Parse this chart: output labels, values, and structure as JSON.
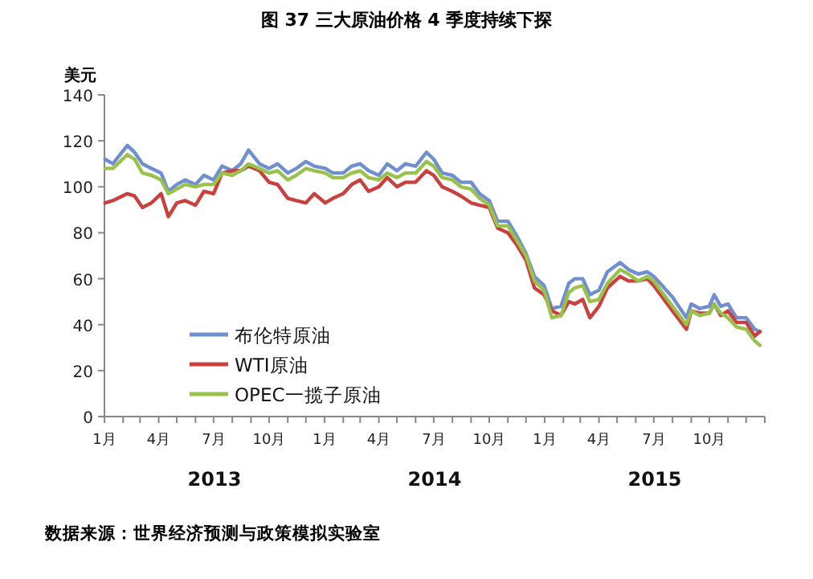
{
  "chart_data": {
    "type": "line",
    "title": "图 37  三大原油价格 4 季度持续下探",
    "ylabel": "美元",
    "annotations": [
      "2013",
      "2014",
      "2015",
      "数据来源：世界经济预测与政策模拟实验室"
    ],
    "xlim": [
      "2013-01-01",
      "2016-01-01"
    ],
    "ylim": [
      0,
      140
    ],
    "yticks": [
      0,
      20,
      40,
      60,
      80,
      100,
      120,
      140
    ],
    "xticks": [
      {
        "value": "2013-01-01",
        "label": "1月"
      },
      {
        "value": "2013-02-01",
        "label": null
      },
      {
        "value": "2013-03-01",
        "label": null
      },
      {
        "value": "2013-04-01",
        "label": "4月"
      },
      {
        "value": "2013-05-01",
        "label": null
      },
      {
        "value": "2013-06-01",
        "label": null
      },
      {
        "value": "2013-07-01",
        "label": "7月"
      },
      {
        "value": "2013-08-01",
        "label": null
      },
      {
        "value": "2013-09-01",
        "label": null
      },
      {
        "value": "2013-10-01",
        "label": "10月"
      },
      {
        "value": "2013-11-01",
        "label": null
      },
      {
        "value": "2013-12-01",
        "label": null
      },
      {
        "value": "2014-01-01",
        "label": "1月"
      },
      {
        "value": "2014-02-01",
        "label": null
      },
      {
        "value": "2014-03-01",
        "label": null
      },
      {
        "value": "2014-04-01",
        "label": "4月"
      },
      {
        "value": "2014-05-01",
        "label": null
      },
      {
        "value": "2014-06-01",
        "label": null
      },
      {
        "value": "2014-07-01",
        "label": "7月"
      },
      {
        "value": "2014-08-01",
        "label": null
      },
      {
        "value": "2014-09-01",
        "label": null
      },
      {
        "value": "2014-10-01",
        "label": "10月"
      },
      {
        "value": "2014-11-01",
        "label": null
      },
      {
        "value": "2014-12-01",
        "label": null
      },
      {
        "value": "2015-01-01",
        "label": "1月"
      },
      {
        "value": "2015-02-01",
        "label": null
      },
      {
        "value": "2015-03-01",
        "label": null
      },
      {
        "value": "2015-04-01",
        "label": "4月"
      },
      {
        "value": "2015-05-01",
        "label": null
      },
      {
        "value": "2015-06-01",
        "label": null
      },
      {
        "value": "2015-07-01",
        "label": "7月"
      },
      {
        "value": "2015-08-01",
        "label": null
      },
      {
        "value": "2015-09-01",
        "label": null
      },
      {
        "value": "2015-10-01",
        "label": "10月"
      },
      {
        "value": "2015-11-01",
        "label": null
      },
      {
        "value": "2015-12-01",
        "label": null
      },
      {
        "value": "2016-01-01",
        "label": null
      }
    ],
    "grid": false,
    "legend": "bottom left",
    "marker": "none",
    "line_style": "solid",
    "x": [
      "2013-01-02",
      "2013-01-15",
      "2013-02-08",
      "2013-02-20",
      "2013-03-05",
      "2013-03-20",
      "2013-04-05",
      "2013-04-17",
      "2013-05-01",
      "2013-05-15",
      "2013-06-01",
      "2013-06-15",
      "2013-07-01",
      "2013-07-15",
      "2013-08-01",
      "2013-08-15",
      "2013-08-28",
      "2013-09-15",
      "2013-10-01",
      "2013-10-15",
      "2013-11-01",
      "2013-11-15",
      "2013-12-01",
      "2013-12-15",
      "2014-01-02",
      "2014-01-15",
      "2014-02-01",
      "2014-02-15",
      "2014-03-01",
      "2014-03-15",
      "2014-04-01",
      "2014-04-15",
      "2014-05-01",
      "2014-05-15",
      "2014-06-01",
      "2014-06-19",
      "2014-07-01",
      "2014-07-15",
      "2014-08-01",
      "2014-08-15",
      "2014-09-01",
      "2014-09-15",
      "2014-10-01",
      "2014-10-15",
      "2014-11-01",
      "2014-11-15",
      "2014-12-01",
      "2014-12-15",
      "2014-12-31",
      "2015-01-13",
      "2015-01-28",
      "2015-02-10",
      "2015-02-20",
      "2015-03-05",
      "2015-03-17",
      "2015-04-01",
      "2015-04-15",
      "2015-05-06",
      "2015-05-20",
      "2015-06-05",
      "2015-06-20",
      "2015-07-01",
      "2015-07-15",
      "2015-08-01",
      "2015-08-24",
      "2015-09-01",
      "2015-09-15",
      "2015-10-01",
      "2015-10-09",
      "2015-10-20",
      "2015-11-01",
      "2015-11-15",
      "2015-12-01",
      "2015-12-15",
      "2015-12-24"
    ],
    "series": [
      {
        "name": "布伦特原油",
        "color": "#6f8fd0",
        "values": [
          112,
          110,
          118,
          115,
          110,
          108,
          106,
          98,
          101,
          103,
          101,
          105,
          103,
          109,
          107,
          110,
          116,
          110,
          108,
          110,
          106,
          108,
          111,
          109,
          108,
          106,
          106,
          109,
          110,
          107,
          105,
          110,
          107,
          110,
          109,
          115,
          112,
          106,
          105,
          102,
          102,
          97,
          94,
          85,
          85,
          79,
          71,
          61,
          57,
          47,
          48,
          58,
          60,
          60,
          53,
          55,
          63,
          67,
          64,
          62,
          63,
          61,
          57,
          52,
          43,
          49,
          47,
          48,
          53,
          48,
          49,
          43,
          43,
          38,
          37
        ]
      },
      {
        "name": "WTI原油",
        "color": "#c9403e",
        "values": [
          93,
          94,
          97,
          96,
          91,
          93,
          97,
          87,
          93,
          94,
          92,
          98,
          97,
          106,
          107,
          107,
          109,
          107,
          102,
          101,
          95,
          94,
          93,
          97,
          93,
          95,
          97,
          101,
          103,
          98,
          100,
          104,
          100,
          102,
          102,
          107,
          105,
          100,
          98,
          96,
          93,
          92,
          91,
          82,
          80,
          75,
          68,
          56,
          53,
          46,
          44,
          50,
          49,
          51,
          43,
          48,
          56,
          61,
          59,
          59,
          60,
          57,
          52,
          46,
          38,
          46,
          45,
          45,
          49,
          44,
          46,
          41,
          41,
          35,
          37
        ]
      },
      {
        "name": "OPEC一揽子原油",
        "color": "#99c24d",
        "values": [
          108,
          108,
          114,
          112,
          106,
          105,
          103,
          97,
          99,
          101,
          100,
          101,
          101,
          106,
          105,
          107,
          110,
          108,
          106,
          107,
          103,
          105,
          108,
          107,
          106,
          104,
          104,
          106,
          107,
          104,
          103,
          106,
          104,
          106,
          106,
          111,
          109,
          104,
          103,
          100,
          99,
          95,
          92,
          83,
          83,
          77,
          70,
          59,
          55,
          43,
          44,
          54,
          56,
          57,
          50,
          51,
          58,
          64,
          62,
          59,
          61,
          59,
          54,
          48,
          40,
          46,
          44,
          45,
          49,
          45,
          43,
          39,
          38,
          33,
          31
        ]
      }
    ]
  }
}
